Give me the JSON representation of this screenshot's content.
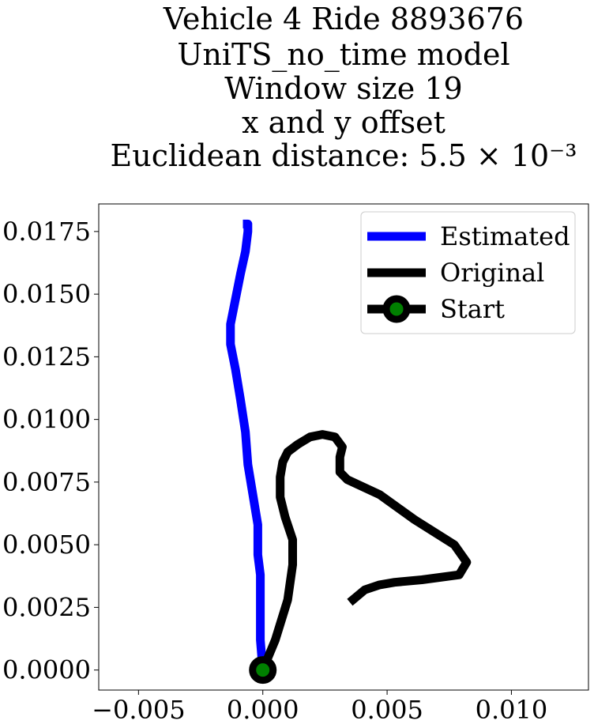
{
  "chart_data": {
    "type": "line",
    "title_lines": [
      "Vehicle 4 Ride 8893676",
      "UniTS_no_time model",
      "Window size 19",
      "x and y offset",
      "Euclidean distance: 5.5 × 10⁻³"
    ],
    "xlabel": "",
    "ylabel": "",
    "xlim": [
      -0.0066,
      0.0131
    ],
    "ylim": [
      -0.0008,
      0.0186
    ],
    "xticks": [
      -0.005,
      0.0,
      0.005,
      0.01
    ],
    "xtick_labels": [
      "−0.005",
      "0.000",
      "0.005",
      "0.010"
    ],
    "yticks": [
      0.0,
      0.0025,
      0.005,
      0.0075,
      0.01,
      0.0125,
      0.015,
      0.0175
    ],
    "ytick_labels": [
      "0.0000",
      "0.0025",
      "0.0050",
      "0.0075",
      "0.0100",
      "0.0125",
      "0.0150",
      "0.0175"
    ],
    "grid": false,
    "legend_position": "top-right",
    "series": [
      {
        "name": "Estimated",
        "color": "#0000ff",
        "x": [
          0.0,
          -0.0001,
          -0.0001,
          -0.0001,
          -0.0002,
          -0.0002,
          -0.0004,
          -0.0006,
          -0.0007,
          -0.0009,
          -0.0011,
          -0.0013,
          -0.0013,
          -0.0011,
          -0.0009,
          -0.0007,
          -0.0006,
          -0.0006,
          -0.0008
        ],
        "y": [
          0.0,
          0.0012,
          0.0025,
          0.0038,
          0.0046,
          0.0058,
          0.007,
          0.0082,
          0.0095,
          0.0108,
          0.012,
          0.013,
          0.0138,
          0.0148,
          0.0158,
          0.0167,
          0.0175,
          0.0178,
          0.0178
        ]
      },
      {
        "name": "Original",
        "color": "#000000",
        "x": [
          0.0,
          0.0005,
          0.001,
          0.0012,
          0.0012,
          0.0009,
          0.0007,
          0.0007,
          0.0008,
          0.001,
          0.0014,
          0.0019,
          0.0024,
          0.0029,
          0.0032,
          0.0031,
          0.0031,
          0.0034,
          0.0047,
          0.0061,
          0.0077,
          0.0082,
          0.0079,
          0.0064,
          0.0053,
          0.0047,
          0.0041,
          0.0035
        ],
        "y": [
          0.0,
          0.0012,
          0.0028,
          0.0042,
          0.0052,
          0.0061,
          0.0069,
          0.0077,
          0.0083,
          0.0087,
          0.009,
          0.0093,
          0.0094,
          0.0093,
          0.0089,
          0.0085,
          0.0079,
          0.0076,
          0.007,
          0.006,
          0.005,
          0.0043,
          0.0038,
          0.0036,
          0.0035,
          0.0034,
          0.0032,
          0.0027
        ]
      }
    ],
    "start_point": {
      "name": "Start",
      "x": 0.0,
      "y": 0.0,
      "marker_color": "#008000",
      "edge_color": "#000000"
    }
  }
}
